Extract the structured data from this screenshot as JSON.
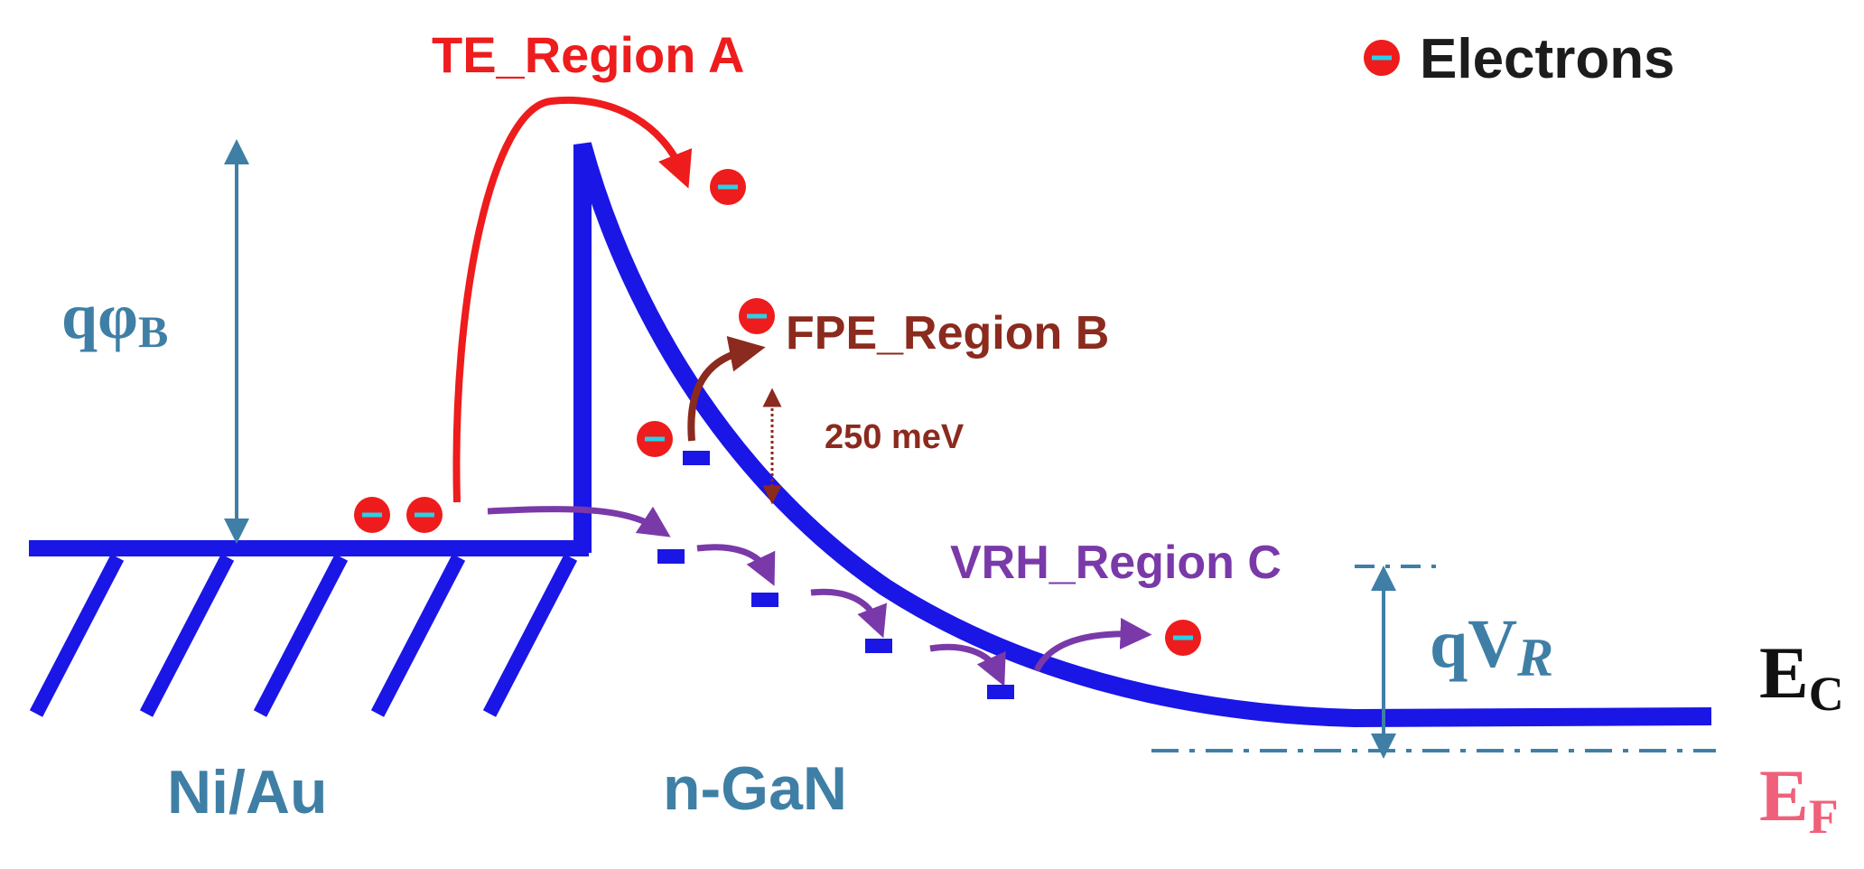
{
  "legend": {
    "symbol": "−",
    "label": "Electrons"
  },
  "labels": {
    "te_region": "TE_Region A",
    "fpe_region": "FPE_Region B",
    "vrh_region": "VRH_Region C",
    "energy_step": "250 meV",
    "metal": "Ni/Au",
    "semiconductor": "n-GaN"
  },
  "barrier": {
    "q": "qφ",
    "sub": "B"
  },
  "reverse_bias": {
    "q": "qV",
    "sub": "R"
  },
  "levels": {
    "ec": {
      "main": "E",
      "sub": "C"
    },
    "ef": {
      "main": "E",
      "sub": "F"
    }
  },
  "electron_symbol": "−",
  "colors": {
    "band": "#1a16e6",
    "te": "#ee1c1c",
    "fpe": "#8b2a1e",
    "vrh": "#7a39a8",
    "annot": "#3f7fa6",
    "electron": "#ee1c1c",
    "electron_dash": "#2ad0e8",
    "ef": "#f0607a",
    "ec": "#111111"
  }
}
